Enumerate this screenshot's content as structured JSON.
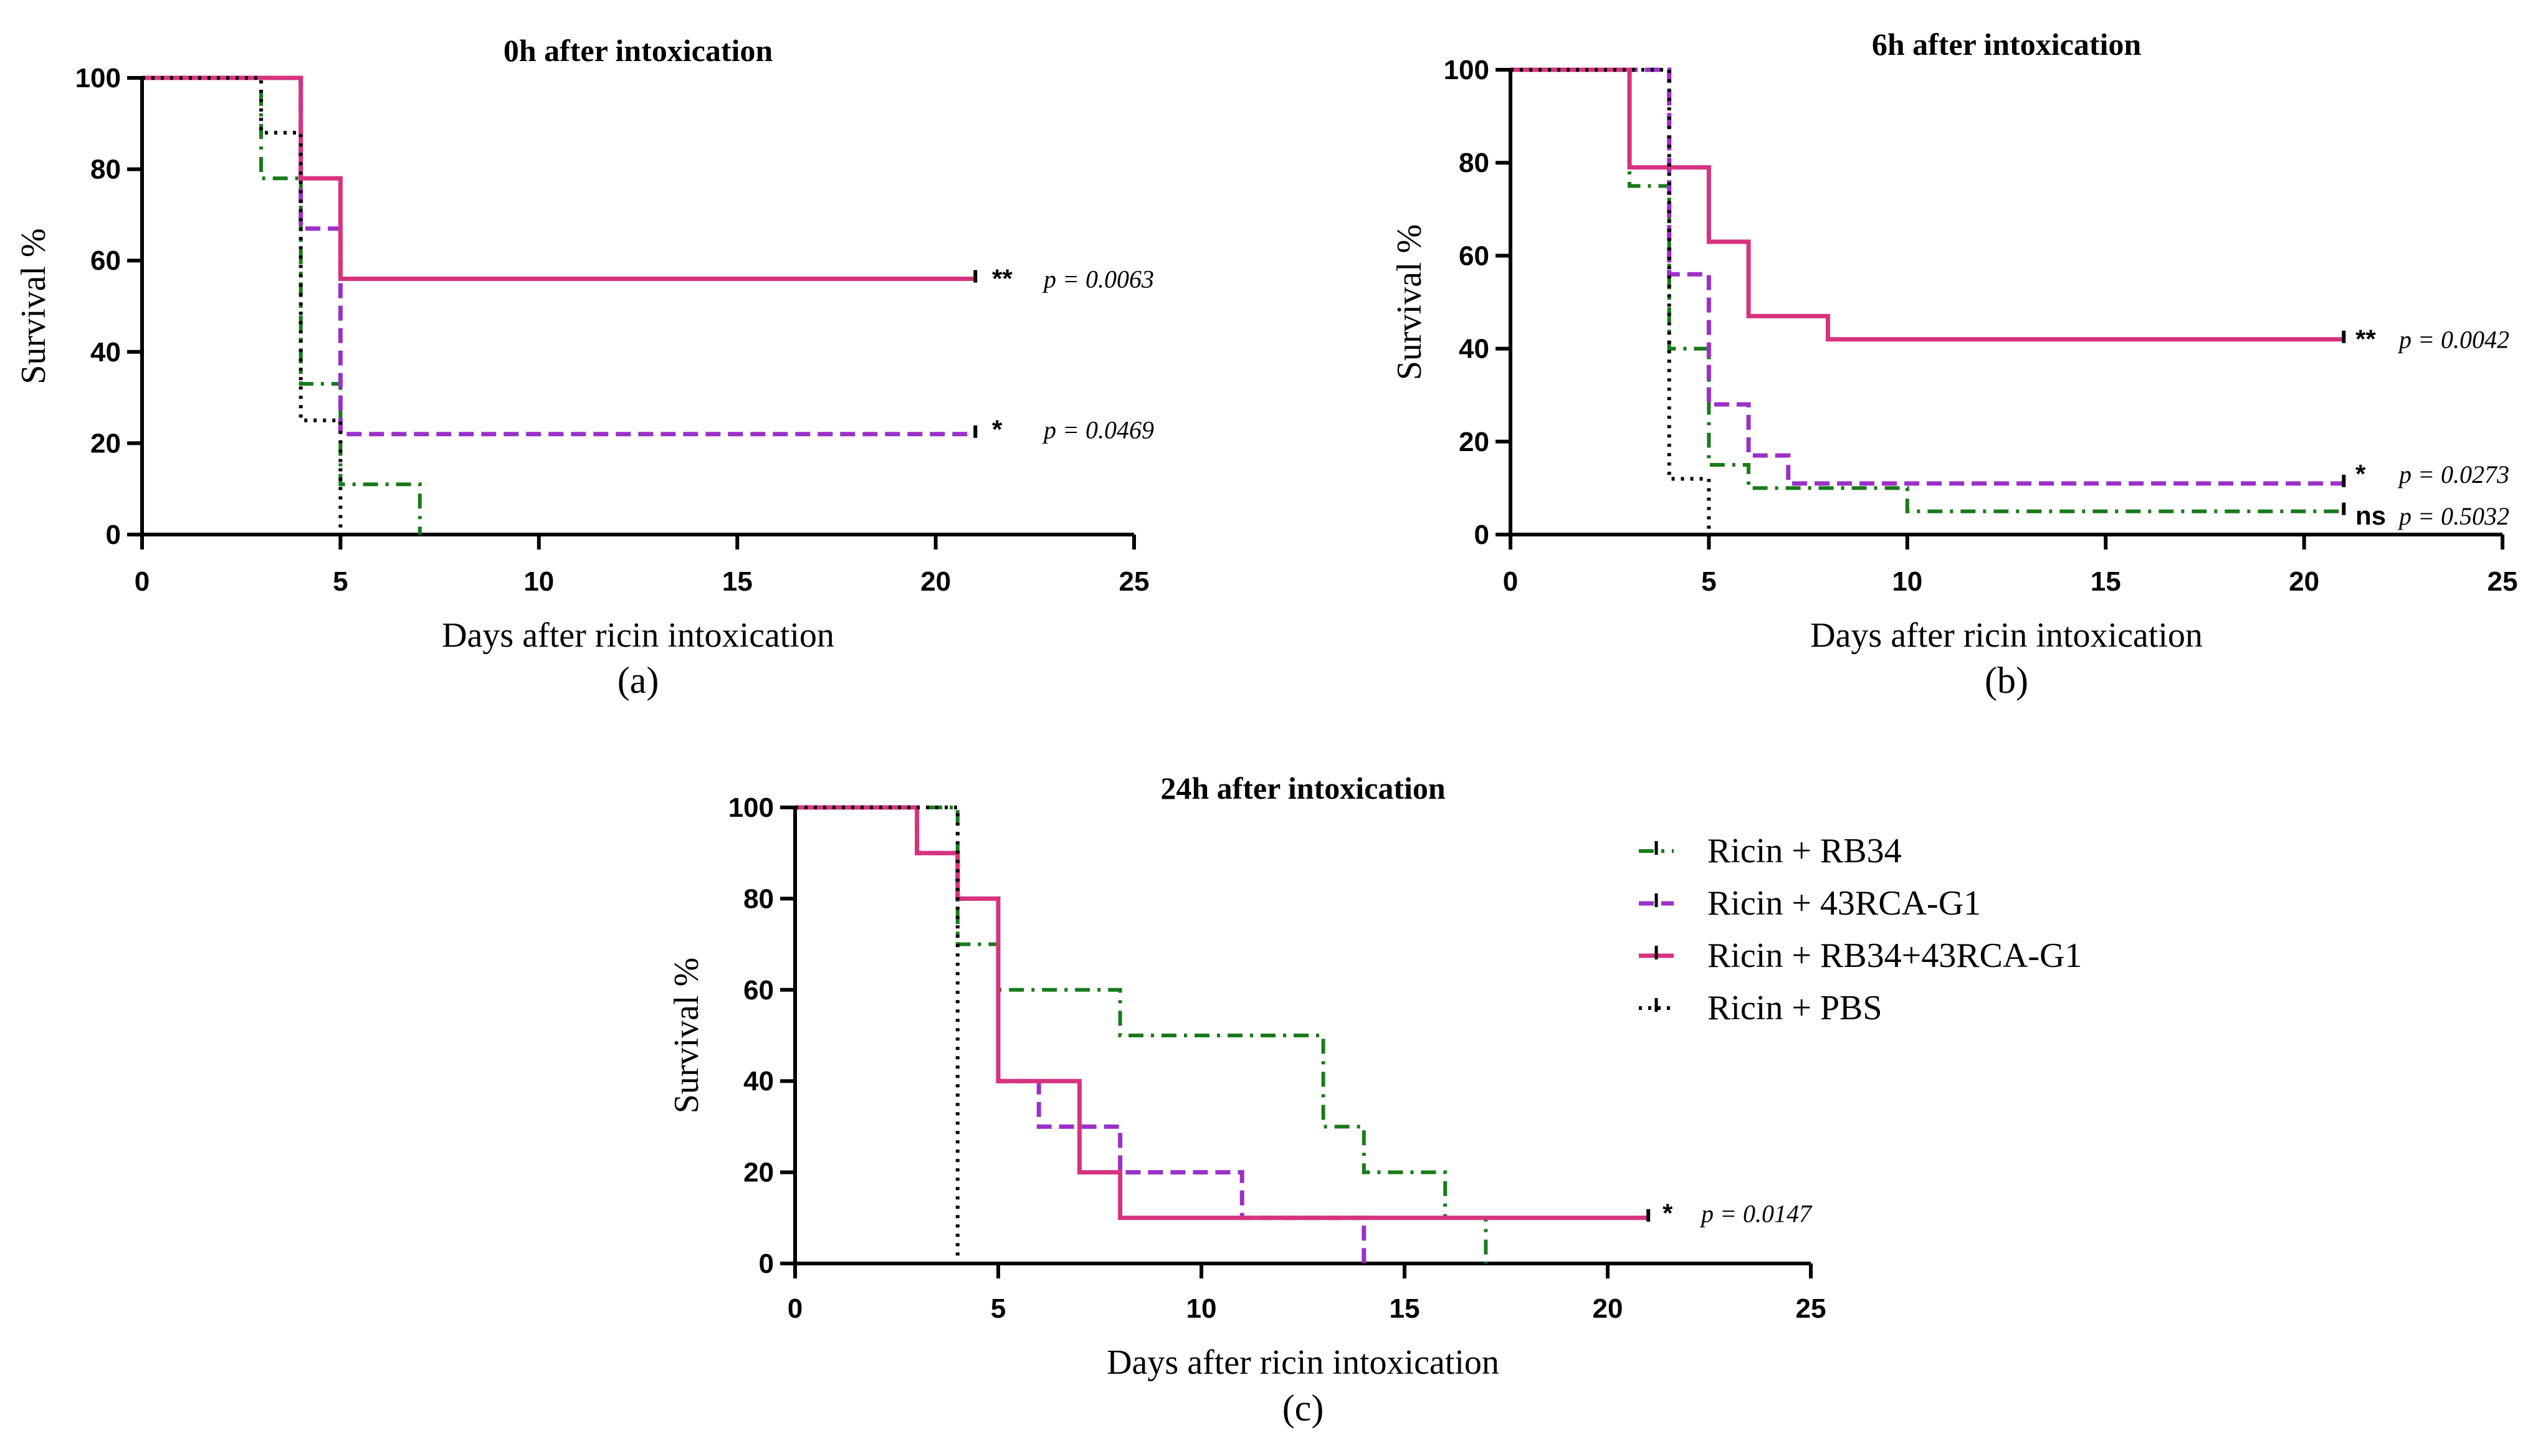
{
  "colors": {
    "rb34": "#1a7a1a",
    "rca": "#9b30c8",
    "combo": "#d6337f",
    "pbs": "#000000",
    "axis": "#000000"
  },
  "legend": [
    {
      "series": "rb34",
      "label": "Ricin + RB34"
    },
    {
      "series": "rca",
      "label": "Ricin + 43RCA-G1"
    },
    {
      "series": "combo",
      "label": "Ricin + RB34+43RCA-G1"
    },
    {
      "series": "pbs",
      "label": "Ricin + PBS"
    }
  ],
  "chart_data": [
    {
      "type": "line",
      "panel": "(a)",
      "title": "0h after intoxication",
      "xlabel": "Days after ricin intoxication",
      "ylabel": "Survival %",
      "xlim": [
        0,
        25
      ],
      "ylim": [
        0,
        100
      ],
      "xticks": [
        0,
        5,
        10,
        15,
        20,
        25
      ],
      "yticks": [
        0,
        20,
        40,
        60,
        80,
        100
      ],
      "series": [
        {
          "key": "rb34",
          "name": "Ricin + RB34",
          "steps": [
            [
              0,
              100
            ],
            [
              3,
              78
            ],
            [
              4,
              33
            ],
            [
              5,
              11
            ],
            [
              7,
              0
            ]
          ]
        },
        {
          "key": "rca",
          "name": "Ricin + 43RCA-G1",
          "steps": [
            [
              0,
              100
            ],
            [
              4,
              67
            ],
            [
              5,
              22
            ],
            [
              21,
              22
            ]
          ]
        },
        {
          "key": "combo",
          "name": "Ricin + RB34+43RCA-G1",
          "steps": [
            [
              0,
              100
            ],
            [
              4,
              78
            ],
            [
              5,
              56
            ],
            [
              21,
              56
            ]
          ]
        },
        {
          "key": "pbs",
          "name": "Ricin + PBS",
          "steps": [
            [
              0,
              100
            ],
            [
              3,
              88
            ],
            [
              4,
              25
            ],
            [
              5,
              0
            ]
          ]
        }
      ],
      "annotations": [
        {
          "stars": "**",
          "p_label": "p = 0.0063",
          "y": 56
        },
        {
          "stars": "*",
          "p_label": "p = 0.0469",
          "y": 23
        }
      ]
    },
    {
      "type": "line",
      "panel": "(b)",
      "title": "6h after intoxication",
      "xlabel": "Days after ricin intoxication",
      "ylabel": "Survival %",
      "xlim": [
        0,
        25
      ],
      "ylim": [
        0,
        100
      ],
      "xticks": [
        0,
        5,
        10,
        15,
        20,
        25
      ],
      "yticks": [
        0,
        20,
        40,
        60,
        80,
        100
      ],
      "series": [
        {
          "key": "rb34",
          "name": "Ricin + RB34",
          "steps": [
            [
              0,
              100
            ],
            [
              3,
              75
            ],
            [
              4,
              40
            ],
            [
              5,
              15
            ],
            [
              6,
              10
            ],
            [
              10,
              5
            ],
            [
              21,
              5
            ]
          ]
        },
        {
          "key": "rca",
          "name": "Ricin + 43RCA-G1",
          "steps": [
            [
              0,
              100
            ],
            [
              4,
              56
            ],
            [
              5,
              28
            ],
            [
              6,
              17
            ],
            [
              7,
              11
            ],
            [
              21,
              11
            ]
          ]
        },
        {
          "key": "combo",
          "name": "Ricin + RB34+43RCA-G1",
          "steps": [
            [
              0,
              100
            ],
            [
              3,
              79
            ],
            [
              5,
              63
            ],
            [
              6,
              47
            ],
            [
              8,
              42
            ],
            [
              21,
              42
            ]
          ]
        },
        {
          "key": "pbs",
          "name": "Ricin + PBS",
          "steps": [
            [
              0,
              100
            ],
            [
              4,
              12
            ],
            [
              5,
              0
            ]
          ]
        }
      ],
      "annotations": [
        {
          "stars": "**",
          "p_label": "p = 0.0042",
          "y": 42
        },
        {
          "stars": "*",
          "p_label": "p = 0.0273",
          "y": 13
        },
        {
          "stars": "ns",
          "p_label": "p = 0.5032",
          "y": 4
        }
      ]
    },
    {
      "type": "line",
      "panel": "(c)",
      "title": "24h after intoxication",
      "xlabel": "Days after ricin intoxication",
      "ylabel": "Survival %",
      "xlim": [
        0,
        25
      ],
      "ylim": [
        0,
        100
      ],
      "xticks": [
        0,
        5,
        10,
        15,
        20,
        25
      ],
      "yticks": [
        0,
        20,
        40,
        60,
        80,
        100
      ],
      "series": [
        {
          "key": "rb34",
          "name": "Ricin + RB34",
          "steps": [
            [
              0,
              100
            ],
            [
              4,
              70
            ],
            [
              5,
              60
            ],
            [
              8,
              50
            ],
            [
              13,
              30
            ],
            [
              14,
              20
            ],
            [
              16,
              10
            ],
            [
              17,
              0
            ]
          ]
        },
        {
          "key": "rca",
          "name": "Ricin + 43RCA-G1",
          "steps": [
            [
              0,
              100
            ],
            [
              3,
              90
            ],
            [
              4,
              80
            ],
            [
              5,
              40
            ],
            [
              6,
              30
            ],
            [
              8,
              20
            ],
            [
              11,
              10
            ],
            [
              14,
              0
            ]
          ]
        },
        {
          "key": "combo",
          "name": "Ricin + RB34+43RCA-G1",
          "steps": [
            [
              0,
              100
            ],
            [
              3,
              90
            ],
            [
              4,
              80
            ],
            [
              5,
              40
            ],
            [
              7,
              20
            ],
            [
              8,
              10
            ],
            [
              21,
              10
            ]
          ]
        },
        {
          "key": "pbs",
          "name": "Ricin + PBS",
          "steps": [
            [
              0,
              100
            ],
            [
              4,
              0
            ]
          ]
        }
      ],
      "annotations": [
        {
          "stars": "*",
          "p_label": "p = 0.0147",
          "y": 11
        }
      ]
    }
  ]
}
